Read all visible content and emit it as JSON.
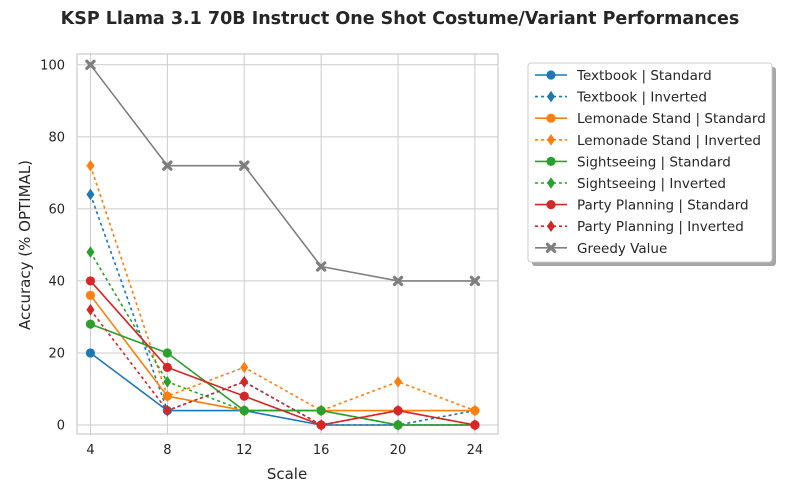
{
  "chart_data": {
    "type": "line",
    "title": "KSP Llama 3.1 70B Instruct One Shot Costume/Variant Performances",
    "xlabel": "Scale",
    "ylabel": "Accuracy (% OPTIMAL)",
    "x": [
      4,
      8,
      12,
      16,
      20,
      24
    ],
    "xticks": [
      "4",
      "8",
      "12",
      "16",
      "20",
      "24"
    ],
    "yticks": [
      "0",
      "20",
      "40",
      "60",
      "80",
      "100"
    ],
    "xlim": [
      3.3,
      25.2
    ],
    "ylim": [
      -2.5,
      103
    ],
    "grid": true,
    "legend_position": "outside-right",
    "series": [
      {
        "name": "Textbook | Standard",
        "values": [
          20,
          4,
          4,
          0,
          0,
          0
        ],
        "color": "#1f77b4",
        "dashed": false,
        "marker": "circle"
      },
      {
        "name": "Textbook | Inverted",
        "values": [
          64,
          4,
          12,
          0,
          0,
          4
        ],
        "color": "#1f77b4",
        "dashed": true,
        "marker": "diamond"
      },
      {
        "name": "Lemonade Stand | Standard",
        "values": [
          36,
          8,
          4,
          4,
          4,
          4
        ],
        "color": "#ff7f0e",
        "dashed": false,
        "marker": "circle"
      },
      {
        "name": "Lemonade Stand | Inverted",
        "values": [
          72,
          8,
          16,
          4,
          12,
          4
        ],
        "color": "#ff7f0e",
        "dashed": true,
        "marker": "diamond"
      },
      {
        "name": "Sightseeing | Standard",
        "values": [
          28,
          20,
          4,
          4,
          0,
          0
        ],
        "color": "#2ca02c",
        "dashed": false,
        "marker": "circle"
      },
      {
        "name": "Sightseeing | Inverted",
        "values": [
          48,
          12,
          4,
          4,
          0,
          0
        ],
        "color": "#2ca02c",
        "dashed": true,
        "marker": "diamond"
      },
      {
        "name": "Party Planning | Standard",
        "values": [
          40,
          16,
          8,
          0,
          4,
          0
        ],
        "color": "#d62728",
        "dashed": false,
        "marker": "circle"
      },
      {
        "name": "Party Planning | Inverted",
        "values": [
          32,
          4,
          12,
          0,
          4,
          0
        ],
        "color": "#d62728",
        "dashed": true,
        "marker": "diamond"
      },
      {
        "name": "Greedy Value",
        "values": [
          100,
          72,
          72,
          44,
          40,
          40
        ],
        "color": "#7f7f7f",
        "dashed": false,
        "marker": "x"
      }
    ]
  }
}
